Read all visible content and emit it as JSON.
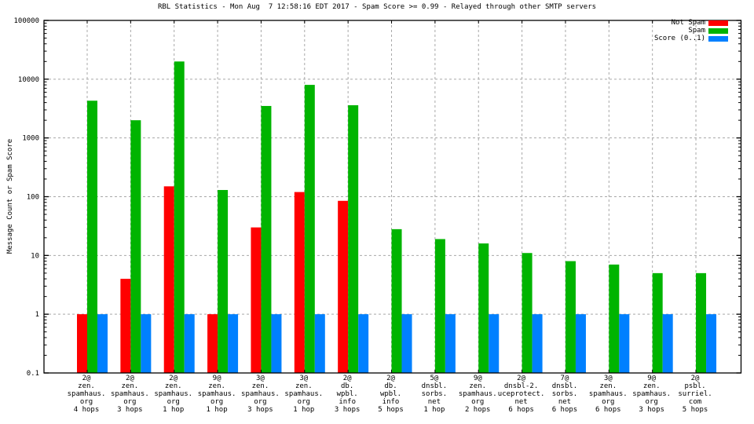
{
  "chart_data": {
    "type": "bar",
    "title": "RBL Statistics - Mon Aug  7 12:58:16 EDT 2017 - Spam Score >= 0.99 - Relayed through other SMTP servers",
    "xlabel": "",
    "ylabel": "Message Count or Spam Score",
    "yscale": "log",
    "ylim": [
      0.1,
      100000
    ],
    "ytick_labels": [
      "100000",
      "10000",
      "1000",
      "100",
      "10",
      "1",
      "0.1"
    ],
    "ytick_values": [
      100000,
      10000,
      1000,
      100,
      10,
      1,
      0.1
    ],
    "grid": true,
    "grid_color": "#a8a8a8",
    "border_color": "#000000",
    "background_color": "#ffffff",
    "legend_position": "top-right-inside",
    "categories": [
      [
        "2@",
        "zen.",
        "spamhaus.",
        "org",
        "4 hops"
      ],
      [
        "2@",
        "zen.",
        "spamhaus.",
        "org",
        "3 hops"
      ],
      [
        "2@",
        "zen.",
        "spamhaus.",
        "org",
        "1 hop"
      ],
      [
        "9@",
        "zen.",
        "spamhaus.",
        "org",
        "1 hop"
      ],
      [
        "3@",
        "zen.",
        "spamhaus.",
        "org",
        "3 hops"
      ],
      [
        "3@",
        "zen.",
        "spamhaus.",
        "org",
        "1 hop"
      ],
      [
        "2@",
        "db.",
        "wpbl.",
        "info",
        "3 hops"
      ],
      [
        "2@",
        "db.",
        "wpbl.",
        "info",
        "5 hops"
      ],
      [
        "5@",
        "dnsbl.",
        "sorbs.",
        "net",
        "1 hop"
      ],
      [
        "9@",
        "zen.",
        "spamhaus.",
        "org",
        "2 hops"
      ],
      [
        "2@",
        "dnsbl-2.",
        "uceprotect.",
        "net",
        "6 hops"
      ],
      [
        "7@",
        "dnsbl.",
        "sorbs.",
        "net",
        "6 hops"
      ],
      [
        "3@",
        "zen.",
        "spamhaus.",
        "org",
        "6 hops"
      ],
      [
        "9@",
        "zen.",
        "spamhaus.",
        "org",
        "3 hops"
      ],
      [
        "2@",
        "psbl.",
        "surriel.",
        "com",
        "5 hops"
      ]
    ],
    "series": [
      {
        "name": "Not Spam",
        "color": "#ff0000",
        "values": [
          1,
          4,
          150,
          1,
          30,
          120,
          85,
          0,
          0,
          0,
          0,
          0,
          0,
          0,
          0
        ]
      },
      {
        "name": "Spam",
        "color": "#00b400",
        "values": [
          4300,
          2000,
          20000,
          130,
          3500,
          8000,
          3600,
          28,
          19,
          16,
          11,
          8,
          7,
          5,
          5
        ]
      },
      {
        "name": "Score (0..1)",
        "color": "#0080ff",
        "values": [
          1,
          1,
          1,
          1,
          1,
          1,
          1,
          1,
          1,
          1,
          1,
          1,
          1,
          1,
          1
        ]
      }
    ]
  }
}
